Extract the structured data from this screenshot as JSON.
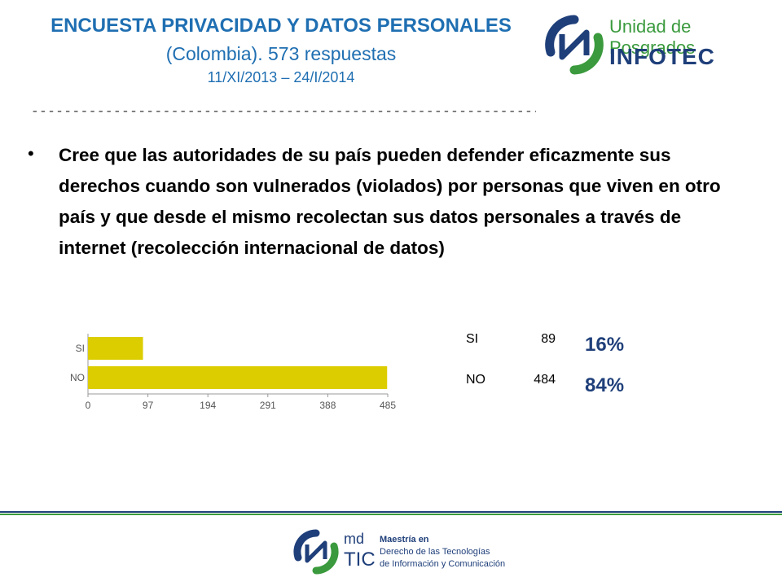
{
  "header": {
    "title": "ENCUESTA PRIVACIDAD Y DATOS PERSONALES",
    "subtitle": "(Colombia). 573 respuestas",
    "dates": "11/XI/2013 – 24/I/2014",
    "separator": "--------------------------------------------------------------"
  },
  "logo_top": {
    "unit": "Unidad de Posgrados",
    "brand": "INFOTEC"
  },
  "question": "Cree que las autoridades de su país pueden defender eficazmente sus derechos cuando son vulnerados (violados) por personas que viven en otro país y que desde el mismo recolectan sus datos personales a través de internet (recolección internacional de datos)",
  "chart_data": {
    "type": "bar",
    "orientation": "horizontal",
    "categories": [
      "SI",
      "NO"
    ],
    "values": [
      89,
      484
    ],
    "xlim": [
      0,
      485
    ],
    "x_ticks": [
      "0",
      "97",
      "194",
      "291",
      "388",
      "485"
    ],
    "bar_color": "#dccd00",
    "grid": false
  },
  "results": [
    {
      "label": "SI",
      "count": "89",
      "percent": "16%"
    },
    {
      "label": "NO",
      "count": "484",
      "percent": "84%"
    }
  ],
  "footer": {
    "md": "md",
    "tic": "TIC",
    "line1": "Maestría en",
    "line2": "Derecho de las Tecnologías",
    "line3": "de Información y Comunicación"
  },
  "colors": {
    "title_blue": "#1f6fb2",
    "navy": "#1f3f7a",
    "green": "#3a9a3d"
  }
}
